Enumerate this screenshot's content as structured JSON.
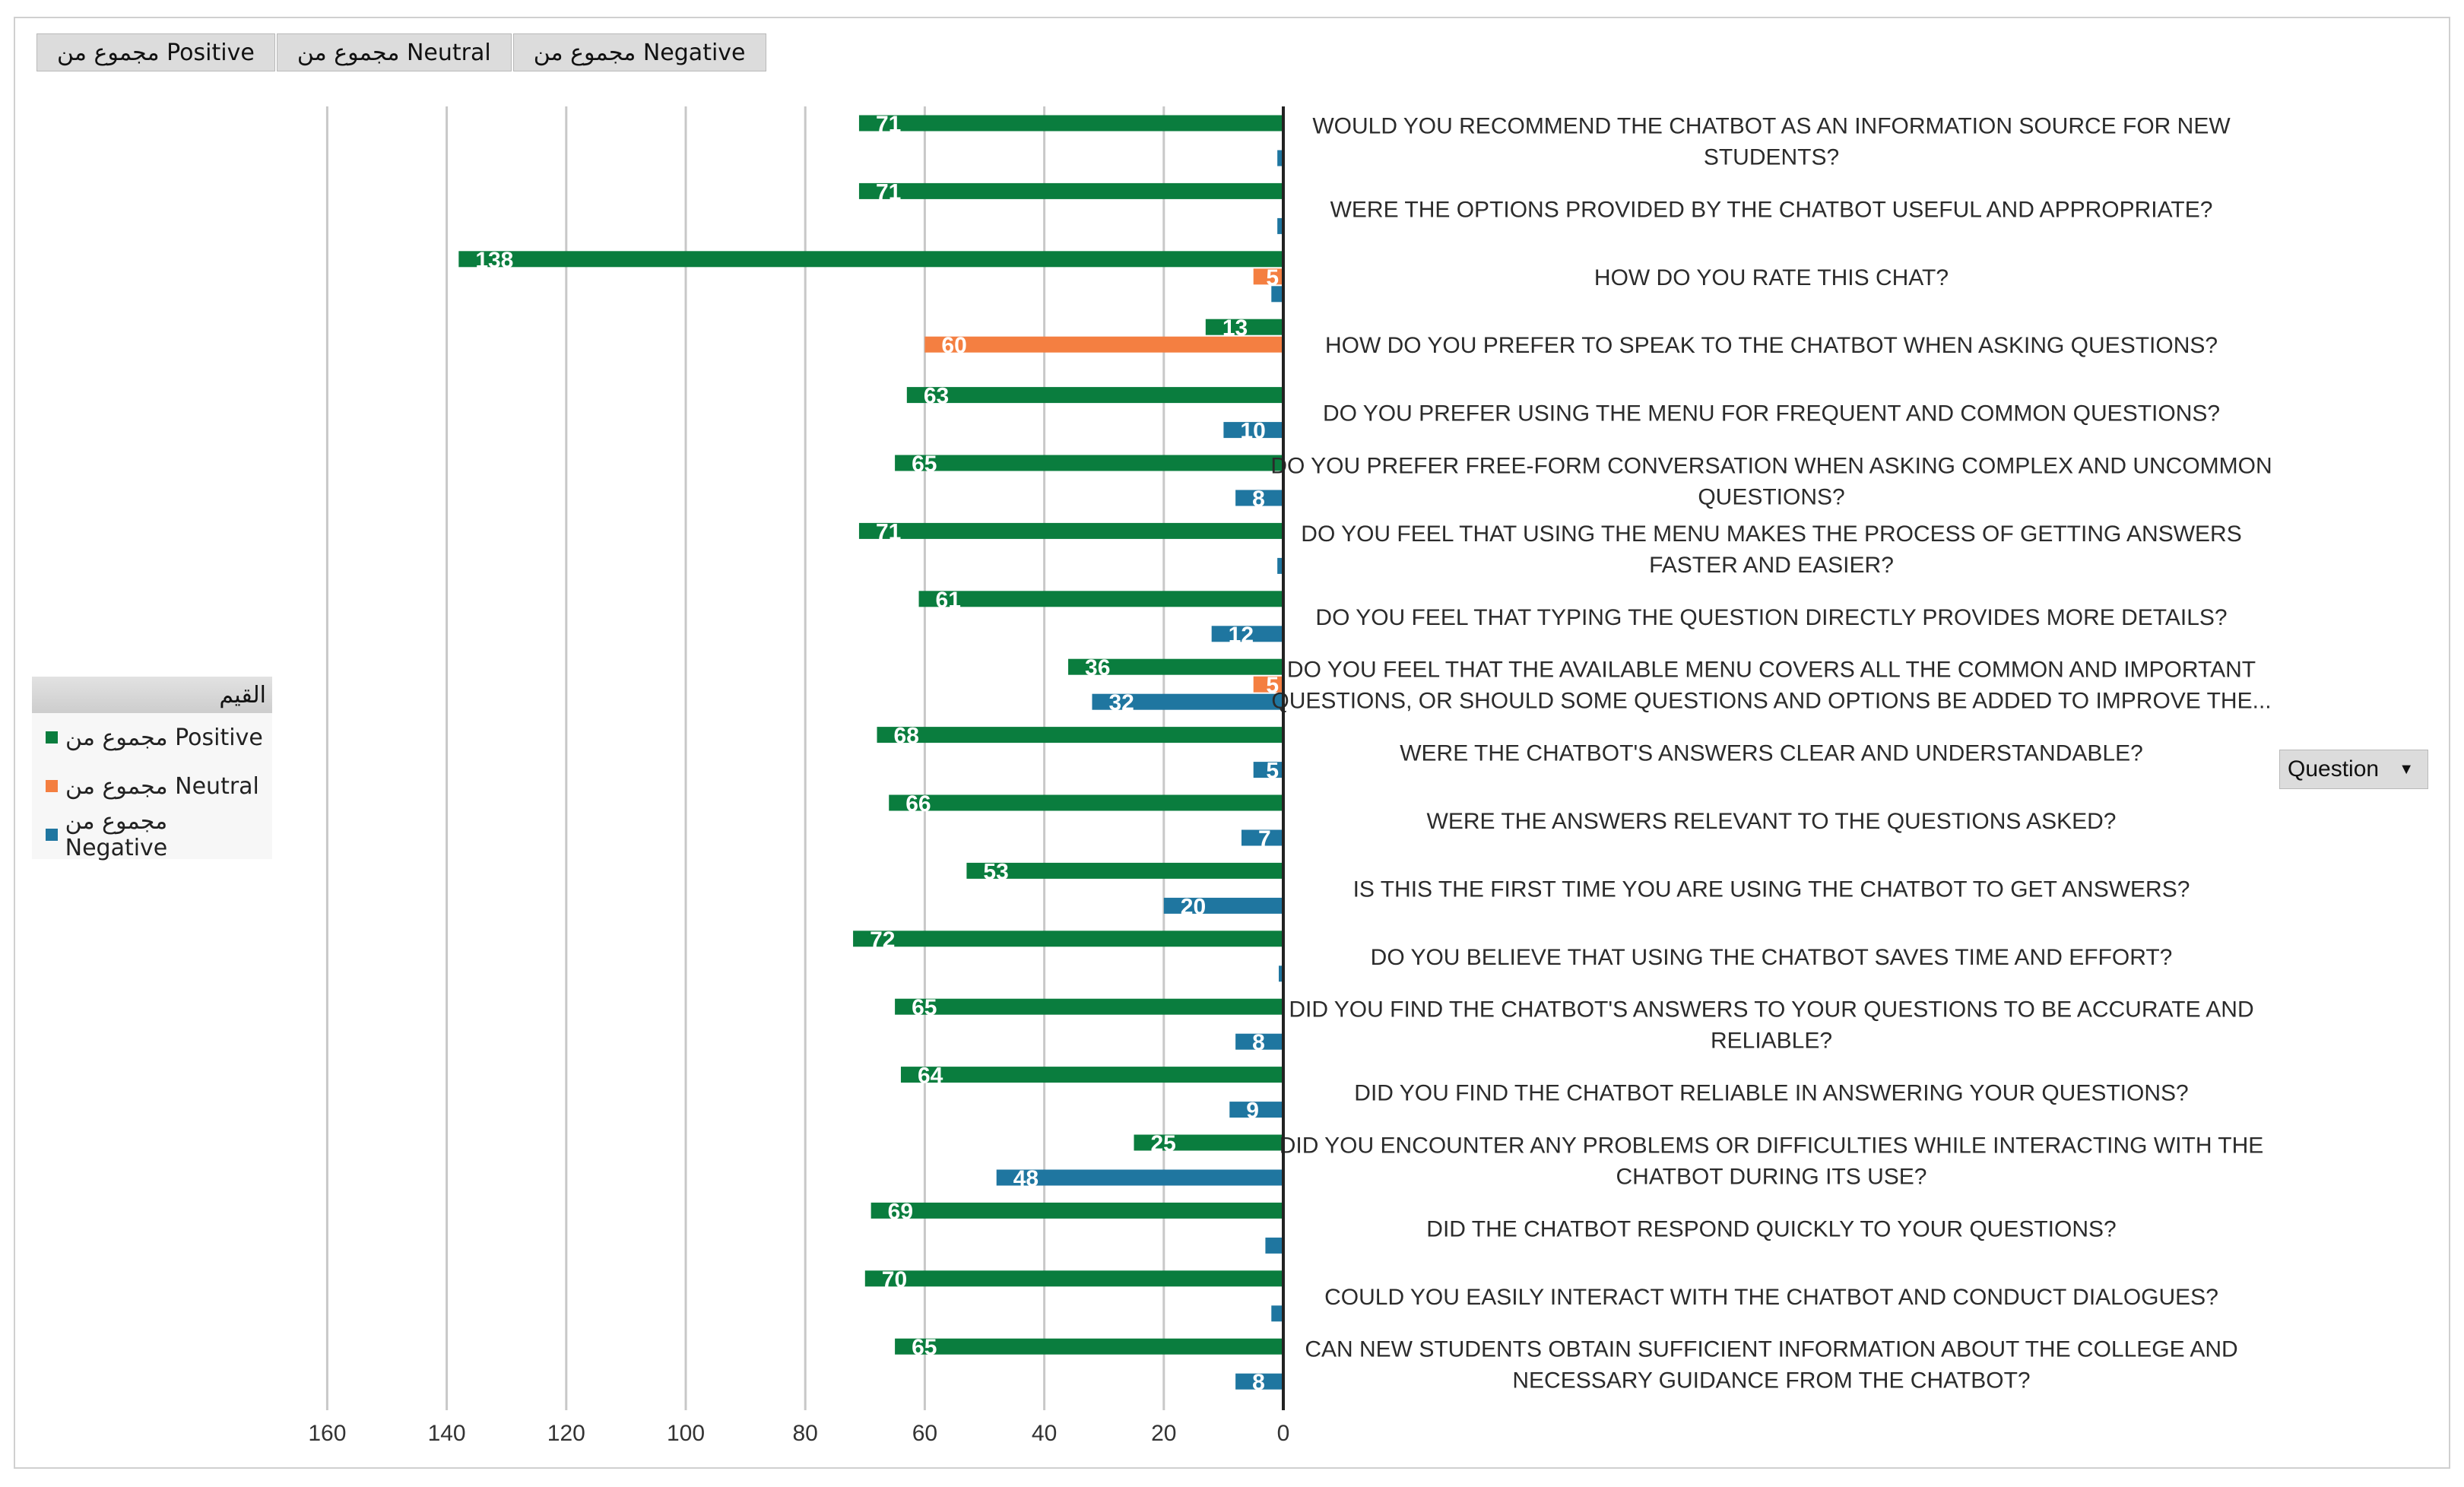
{
  "field_buttons": [
    {
      "label": "مجموع من Positive"
    },
    {
      "label": "مجموع من Neutral"
    },
    {
      "label": "مجموع من Negative"
    }
  ],
  "legend": {
    "title": "القيم",
    "items": [
      {
        "label": "مجموع من Positive",
        "color": "#0a7d3e"
      },
      {
        "label": "مجموع من Neutral",
        "color": "#f47f41"
      },
      {
        "label": "مجموع من Negative",
        "color": "#1f76a0"
      }
    ]
  },
  "dropdown": {
    "label": "Question"
  },
  "chart_data": {
    "type": "bar",
    "orientation": "horizontal",
    "x_reversed": true,
    "xlim": [
      0,
      160
    ],
    "xticks": [
      "160",
      "140",
      "120",
      "100",
      "80",
      "60",
      "40",
      "20",
      "0"
    ],
    "grid": true,
    "legend_position": "left",
    "colors": {
      "Positive": "#0a7d3e",
      "Neutral": "#f47f41",
      "Negative": "#1f76a0"
    },
    "categories": [
      {
        "label_lines": [
          "WOULD YOU RECOMMEND THE CHATBOT AS AN INFORMATION SOURCE FOR NEW",
          "STUDENTS?"
        ],
        "bars": [
          {
            "series": "Positive",
            "value": 71,
            "label": "71"
          },
          {
            "series": "Negative",
            "value": 1
          }
        ]
      },
      {
        "label_lines": [
          "WERE THE OPTIONS PROVIDED BY THE CHATBOT USEFUL AND APPROPRIATE?"
        ],
        "bars": [
          {
            "series": "Positive",
            "value": 71,
            "label": "71"
          },
          {
            "series": "Negative",
            "value": 1
          }
        ]
      },
      {
        "label_lines": [
          "HOW DO YOU RATE THIS CHAT?"
        ],
        "bars": [
          {
            "series": "Positive",
            "value": 138,
            "label": "138"
          },
          {
            "series": "Neutral",
            "value": 5,
            "label": "5"
          },
          {
            "series": "Negative",
            "value": 2
          }
        ]
      },
      {
        "label_lines": [
          "HOW DO YOU PREFER TO SPEAK TO THE CHATBOT WHEN ASKING QUESTIONS?"
        ],
        "bars": [
          {
            "series": "Positive",
            "value": 13,
            "label": "13"
          },
          {
            "series": "Neutral",
            "value": 60,
            "label": "60"
          }
        ]
      },
      {
        "label_lines": [
          "DO YOU PREFER USING THE MENU FOR FREQUENT AND COMMON QUESTIONS?"
        ],
        "bars": [
          {
            "series": "Positive",
            "value": 63,
            "label": "63"
          },
          {
            "series": "Negative",
            "value": 10,
            "label": "10"
          }
        ]
      },
      {
        "label_lines": [
          "DO YOU PREFER FREE-FORM CONVERSATION WHEN ASKING COMPLEX AND UNCOMMON",
          "QUESTIONS?"
        ],
        "bars": [
          {
            "series": "Positive",
            "value": 65,
            "label": "65"
          },
          {
            "series": "Negative",
            "value": 8,
            "label": "8"
          }
        ]
      },
      {
        "label_lines": [
          "DO YOU FEEL THAT USING THE MENU MAKES THE PROCESS OF GETTING ANSWERS",
          "FASTER AND EASIER?"
        ],
        "bars": [
          {
            "series": "Positive",
            "value": 71,
            "label": "71"
          },
          {
            "series": "Negative",
            "value": 1
          }
        ]
      },
      {
        "label_lines": [
          "DO YOU FEEL THAT TYPING THE QUESTION DIRECTLY PROVIDES MORE DETAILS?"
        ],
        "bars": [
          {
            "series": "Positive",
            "value": 61,
            "label": "61"
          },
          {
            "series": "Negative",
            "value": 12,
            "label": "12"
          }
        ]
      },
      {
        "label_lines": [
          "DO YOU FEEL THAT THE AVAILABLE MENU COVERS ALL THE COMMON AND IMPORTANT",
          "QUESTIONS, OR SHOULD SOME QUESTIONS AND OPTIONS BE ADDED TO IMPROVE THE..."
        ],
        "bars": [
          {
            "series": "Positive",
            "value": 36,
            "label": "36"
          },
          {
            "series": "Neutral",
            "value": 5,
            "label": "5"
          },
          {
            "series": "Negative",
            "value": 32,
            "label": "32"
          }
        ]
      },
      {
        "label_lines": [
          "WERE THE CHATBOT'S ANSWERS CLEAR AND UNDERSTANDABLE?"
        ],
        "bars": [
          {
            "series": "Positive",
            "value": 68,
            "label": "68"
          },
          {
            "series": "Negative",
            "value": 5,
            "label": "5"
          }
        ]
      },
      {
        "label_lines": [
          "WERE THE ANSWERS RELEVANT TO THE QUESTIONS ASKED?"
        ],
        "bars": [
          {
            "series": "Positive",
            "value": 66,
            "label": "66"
          },
          {
            "series": "Negative",
            "value": 7,
            "label": "7"
          }
        ]
      },
      {
        "label_lines": [
          "IS THIS THE FIRST TIME YOU ARE USING THE CHATBOT TO GET ANSWERS?"
        ],
        "bars": [
          {
            "series": "Positive",
            "value": 53,
            "label": "53"
          },
          {
            "series": "Negative",
            "value": 20,
            "label": "20"
          }
        ]
      },
      {
        "label_lines": [
          "DO YOU BELIEVE THAT USING THE CHATBOT SAVES TIME AND EFFORT?"
        ],
        "bars": [
          {
            "series": "Positive",
            "value": 72,
            "label": "72"
          },
          {
            "series": "Negative",
            "value": 0.5
          }
        ]
      },
      {
        "label_lines": [
          "DID YOU FIND THE CHATBOT'S ANSWERS TO YOUR QUESTIONS TO BE ACCURATE AND",
          "RELIABLE?"
        ],
        "bars": [
          {
            "series": "Positive",
            "value": 65,
            "label": "65"
          },
          {
            "series": "Negative",
            "value": 8,
            "label": "8"
          }
        ]
      },
      {
        "label_lines": [
          "DID YOU FIND THE CHATBOT RELIABLE IN ANSWERING YOUR QUESTIONS?"
        ],
        "bars": [
          {
            "series": "Positive",
            "value": 64,
            "label": "64"
          },
          {
            "series": "Negative",
            "value": 9,
            "label": "9"
          }
        ]
      },
      {
        "label_lines": [
          "DID YOU ENCOUNTER ANY PROBLEMS OR DIFFICULTIES WHILE INTERACTING WITH THE",
          "CHATBOT DURING ITS USE?"
        ],
        "bars": [
          {
            "series": "Positive",
            "value": 25,
            "label": "25"
          },
          {
            "series": "Negative",
            "value": 48,
            "label": "48"
          }
        ]
      },
      {
        "label_lines": [
          "DID THE CHATBOT RESPOND QUICKLY TO YOUR QUESTIONS?"
        ],
        "bars": [
          {
            "series": "Positive",
            "value": 69,
            "label": "69"
          },
          {
            "series": "Negative",
            "value": 3
          }
        ]
      },
      {
        "label_lines": [
          "COULD YOU EASILY INTERACT WITH THE CHATBOT AND CONDUCT DIALOGUES?"
        ],
        "bars": [
          {
            "series": "Positive",
            "value": 70,
            "label": "70"
          },
          {
            "series": "Negative",
            "value": 2
          }
        ]
      },
      {
        "label_lines": [
          "CAN NEW STUDENTS OBTAIN SUFFICIENT INFORMATION ABOUT THE COLLEGE AND",
          "NECESSARY GUIDANCE FROM THE CHATBOT?"
        ],
        "bars": [
          {
            "series": "Positive",
            "value": 65,
            "label": "65"
          },
          {
            "series": "Negative",
            "value": 8,
            "label": "8"
          }
        ]
      }
    ]
  }
}
